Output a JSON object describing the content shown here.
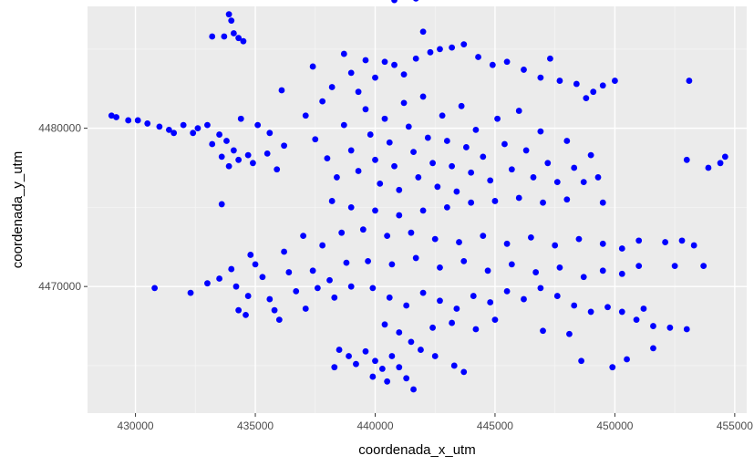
{
  "chart_data": {
    "type": "scatter",
    "xlabel": "coordenada_x_utm",
    "ylabel": "coordenada_y_utm",
    "xlim": [
      428000,
      455500
    ],
    "ylim": [
      4462000,
      4487700
    ],
    "x_ticks": [
      430000,
      435000,
      440000,
      445000,
      450000,
      455000
    ],
    "x_tick_labels": [
      "430000",
      "435000",
      "440000",
      "445000",
      "450000",
      "455000"
    ],
    "y_ticks": [
      4470000,
      4480000
    ],
    "y_tick_labels": [
      "4470000",
      "4480000"
    ],
    "grid": true,
    "legend": "none",
    "point_color": "#0000ff",
    "panel_background": "#ebebeb",
    "series": [
      {
        "values": [
          [
            429000,
            4480800
          ],
          [
            429200,
            4480700
          ],
          [
            429700,
            4480500
          ],
          [
            430100,
            4480500
          ],
          [
            430500,
            4480300
          ],
          [
            431000,
            4480100
          ],
          [
            431400,
            4479900
          ],
          [
            431600,
            4479700
          ],
          [
            432000,
            4480200
          ],
          [
            432400,
            4479700
          ],
          [
            432600,
            4480000
          ],
          [
            433000,
            4480200
          ],
          [
            433500,
            4479600
          ],
          [
            433200,
            4479000
          ],
          [
            433800,
            4479200
          ],
          [
            434100,
            4478600
          ],
          [
            433600,
            4478200
          ],
          [
            434300,
            4478000
          ],
          [
            434700,
            4478300
          ],
          [
            433900,
            4477600
          ],
          [
            434400,
            4480600
          ],
          [
            435100,
            4480200
          ],
          [
            435600,
            4479700
          ],
          [
            435500,
            4478400
          ],
          [
            434900,
            4477800
          ],
          [
            436200,
            4478900
          ],
          [
            435900,
            4477400
          ],
          [
            433200,
            4485800
          ],
          [
            433700,
            4485800
          ],
          [
            433900,
            4487200
          ],
          [
            434000,
            4486800
          ],
          [
            434100,
            4486000
          ],
          [
            434300,
            4485700
          ],
          [
            434500,
            4485500
          ],
          [
            440800,
            4488100
          ],
          [
            441700,
            4488200
          ],
          [
            442000,
            4486100
          ],
          [
            430800,
            4469900
          ],
          [
            432300,
            4469600
          ],
          [
            433000,
            4470200
          ],
          [
            433500,
            4470500
          ],
          [
            434000,
            4471100
          ],
          [
            434200,
            4470000
          ],
          [
            434700,
            4469400
          ],
          [
            434800,
            4472000
          ],
          [
            435000,
            4471400
          ],
          [
            435300,
            4470600
          ],
          [
            435600,
            4469200
          ],
          [
            435800,
            4468500
          ],
          [
            436200,
            4472200
          ],
          [
            436400,
            4470900
          ],
          [
            436700,
            4469700
          ],
          [
            437000,
            4473200
          ],
          [
            437100,
            4468600
          ],
          [
            437400,
            4471000
          ],
          [
            437600,
            4469900
          ],
          [
            437800,
            4472600
          ],
          [
            438100,
            4470400
          ],
          [
            438300,
            4469300
          ],
          [
            438600,
            4473400
          ],
          [
            438800,
            4471500
          ],
          [
            439000,
            4470000
          ],
          [
            434300,
            4468500
          ],
          [
            434600,
            4468200
          ],
          [
            436000,
            4467900
          ],
          [
            433600,
            4475200
          ],
          [
            436100,
            4482400
          ],
          [
            437100,
            4480800
          ],
          [
            437400,
            4483900
          ],
          [
            437800,
            4481700
          ],
          [
            438200,
            4482600
          ],
          [
            438700,
            4484700
          ],
          [
            439000,
            4483500
          ],
          [
            439300,
            4482300
          ],
          [
            439600,
            4484300
          ],
          [
            440000,
            4483200
          ],
          [
            440400,
            4484200
          ],
          [
            440800,
            4484000
          ],
          [
            441200,
            4483400
          ],
          [
            441700,
            4484400
          ],
          [
            442300,
            4484800
          ],
          [
            442700,
            4485000
          ],
          [
            443200,
            4485100
          ],
          [
            443700,
            4485300
          ],
          [
            444300,
            4484500
          ],
          [
            444900,
            4484000
          ],
          [
            445500,
            4484200
          ],
          [
            446200,
            4483700
          ],
          [
            446900,
            4483200
          ],
          [
            447300,
            4484400
          ],
          [
            447700,
            4483000
          ],
          [
            448400,
            4482800
          ],
          [
            448800,
            4481900
          ],
          [
            449100,
            4482300
          ],
          [
            437500,
            4479300
          ],
          [
            438000,
            4478100
          ],
          [
            438400,
            4476900
          ],
          [
            438700,
            4480200
          ],
          [
            439000,
            4478600
          ],
          [
            439300,
            4477300
          ],
          [
            439600,
            4481200
          ],
          [
            439800,
            4479600
          ],
          [
            440000,
            4478000
          ],
          [
            440200,
            4476500
          ],
          [
            440400,
            4480600
          ],
          [
            440600,
            4479100
          ],
          [
            440800,
            4477600
          ],
          [
            441000,
            4476100
          ],
          [
            441200,
            4481600
          ],
          [
            441400,
            4480100
          ],
          [
            441600,
            4478500
          ],
          [
            441800,
            4476900
          ],
          [
            442000,
            4482000
          ],
          [
            442200,
            4479400
          ],
          [
            442400,
            4477800
          ],
          [
            442600,
            4476300
          ],
          [
            442800,
            4480800
          ],
          [
            443000,
            4479200
          ],
          [
            443200,
            4477600
          ],
          [
            443400,
            4476000
          ],
          [
            443600,
            4481400
          ],
          [
            443800,
            4478800
          ],
          [
            444000,
            4477200
          ],
          [
            444200,
            4479900
          ],
          [
            444500,
            4478200
          ],
          [
            444800,
            4476700
          ],
          [
            445100,
            4480600
          ],
          [
            445400,
            4479000
          ],
          [
            445700,
            4477400
          ],
          [
            446000,
            4481100
          ],
          [
            446300,
            4478600
          ],
          [
            446600,
            4476900
          ],
          [
            446900,
            4479800
          ],
          [
            447200,
            4477800
          ],
          [
            447600,
            4476600
          ],
          [
            448000,
            4479200
          ],
          [
            448300,
            4477500
          ],
          [
            448700,
            4476600
          ],
          [
            449000,
            4478300
          ],
          [
            449300,
            4476900
          ],
          [
            438200,
            4475400
          ],
          [
            439000,
            4475000
          ],
          [
            440000,
            4474800
          ],
          [
            441000,
            4474500
          ],
          [
            442000,
            4474800
          ],
          [
            443000,
            4475000
          ],
          [
            444000,
            4475300
          ],
          [
            445000,
            4475400
          ],
          [
            446000,
            4475600
          ],
          [
            447000,
            4475300
          ],
          [
            448000,
            4475500
          ],
          [
            449500,
            4475300
          ],
          [
            439500,
            4473600
          ],
          [
            440500,
            4473200
          ],
          [
            441500,
            4473400
          ],
          [
            442500,
            4473000
          ],
          [
            443500,
            4472800
          ],
          [
            444500,
            4473200
          ],
          [
            445500,
            4472700
          ],
          [
            446500,
            4473100
          ],
          [
            447500,
            4472600
          ],
          [
            448500,
            4473000
          ],
          [
            449500,
            4472700
          ],
          [
            450300,
            4472400
          ],
          [
            451000,
            4472900
          ],
          [
            439700,
            4471600
          ],
          [
            440700,
            4471400
          ],
          [
            441700,
            4471800
          ],
          [
            442700,
            4471200
          ],
          [
            443700,
            4471600
          ],
          [
            444700,
            4471000
          ],
          [
            445700,
            4471400
          ],
          [
            446700,
            4470900
          ],
          [
            447700,
            4471200
          ],
          [
            448700,
            4470600
          ],
          [
            449500,
            4471000
          ],
          [
            450300,
            4470800
          ],
          [
            451000,
            4471300
          ],
          [
            439900,
            4469900
          ],
          [
            440600,
            4469300
          ],
          [
            441300,
            4468800
          ],
          [
            442000,
            4469600
          ],
          [
            442700,
            4469100
          ],
          [
            443400,
            4468600
          ],
          [
            444100,
            4469400
          ],
          [
            444800,
            4469000
          ],
          [
            445500,
            4469700
          ],
          [
            446200,
            4469200
          ],
          [
            446900,
            4469900
          ],
          [
            447600,
            4469400
          ],
          [
            448300,
            4468800
          ],
          [
            449000,
            4468400
          ],
          [
            449700,
            4468700
          ],
          [
            450300,
            4468400
          ],
          [
            450900,
            4467900
          ],
          [
            451600,
            4467500
          ],
          [
            447000,
            4467200
          ],
          [
            448100,
            4467000
          ],
          [
            440400,
            4467600
          ],
          [
            441000,
            4467100
          ],
          [
            441500,
            4466500
          ],
          [
            441900,
            4466000
          ],
          [
            442400,
            4467400
          ],
          [
            443200,
            4467700
          ],
          [
            444200,
            4467300
          ],
          [
            445000,
            4467900
          ],
          [
            438500,
            4466000
          ],
          [
            438900,
            4465600
          ],
          [
            439200,
            4465100
          ],
          [
            439600,
            4465900
          ],
          [
            440000,
            4465300
          ],
          [
            440300,
            4464800
          ],
          [
            440700,
            4465600
          ],
          [
            441000,
            4464900
          ],
          [
            441300,
            4464200
          ],
          [
            441600,
            4463500
          ],
          [
            442500,
            4465600
          ],
          [
            443300,
            4465000
          ],
          [
            443700,
            4464600
          ],
          [
            438300,
            4464900
          ],
          [
            439900,
            4464300
          ],
          [
            440500,
            4464000
          ],
          [
            449900,
            4464900
          ],
          [
            448600,
            4465300
          ],
          [
            450500,
            4465400
          ],
          [
            451600,
            4466100
          ],
          [
            452300,
            4467400
          ],
          [
            453000,
            4467300
          ],
          [
            451200,
            4468600
          ],
          [
            452500,
            4471300
          ],
          [
            452800,
            4472900
          ],
          [
            453300,
            4472600
          ],
          [
            453700,
            4471300
          ],
          [
            452100,
            4472800
          ],
          [
            453000,
            4478000
          ],
          [
            453900,
            4477500
          ],
          [
            454400,
            4477800
          ],
          [
            454600,
            4478200
          ],
          [
            453100,
            4483000
          ],
          [
            449500,
            4482700
          ],
          [
            450000,
            4483000
          ]
        ]
      }
    ]
  }
}
